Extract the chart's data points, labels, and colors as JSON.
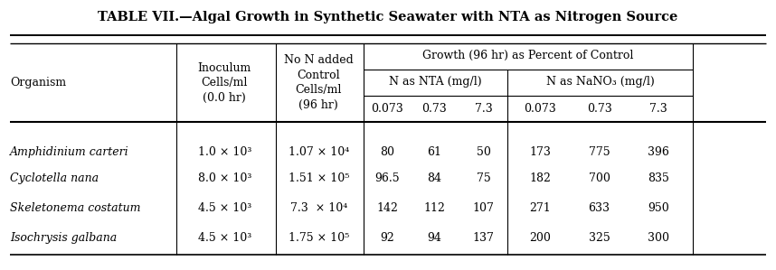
{
  "title": "TABLE VII.—Algal Growth in Synthetic Seawater with NTA as Nitrogen Source",
  "group_header_1": "Growth (96 hr) as Percent of Control",
  "group_header_nta": "N as NTA (mg/l)",
  "group_header_nano3": "N as NaNO₃ (mg/l)",
  "col_headers_sub": [
    "0.073",
    "0.73",
    "7.3",
    "0.073",
    "0.73",
    "7.3"
  ],
  "rows": [
    [
      "Amphidinium carteri",
      "1.0 × 10³",
      "1.07 × 10⁴",
      "80",
      "61",
      "50",
      "173",
      "775",
      "396"
    ],
    [
      "Cyclotella nana",
      "8.0 × 10³",
      "1.51 × 10⁵",
      "96.5",
      "84",
      "75",
      "182",
      "700",
      "835"
    ],
    [
      "Skeletonema costatum",
      "4.5 × 10³",
      "7.3  × 10⁴",
      "142",
      "112",
      "107",
      "271",
      "633",
      "950"
    ],
    [
      "Isochrysis galbana",
      "4.5 × 10³",
      "1.75 × 10⁵",
      "92",
      "94",
      "137",
      "200",
      "325",
      "300"
    ]
  ],
  "bg_color": "#ffffff",
  "text_color": "#000000",
  "figsize": [
    8.58,
    2.99
  ],
  "dpi": 100
}
